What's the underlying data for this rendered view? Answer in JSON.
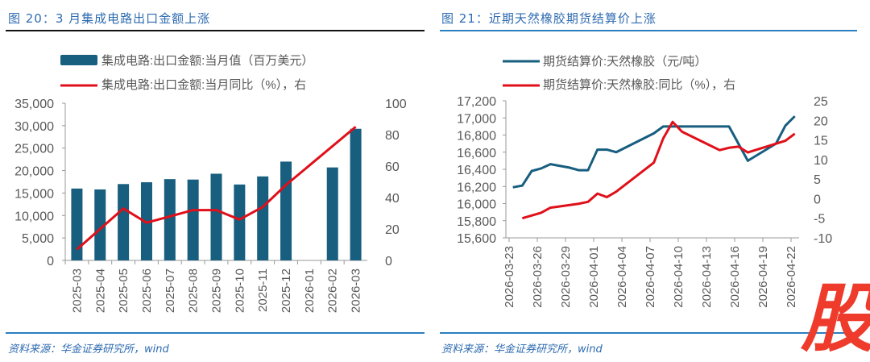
{
  "left": {
    "title": "图 20：3 月集成电路出口金额上涨",
    "source": "资料来源：华金证券研究所，wind"
  },
  "right": {
    "title": "图 21：近期天然橡胶期货结算价上涨",
    "source": "资料来源：华金证券研究所，wind"
  },
  "watermark": "股",
  "colors": {
    "bar": "#175e7f",
    "red": "#e0101a",
    "blue_line": "#175e7f",
    "title": "#2e6bb0"
  },
  "chart_data": [
    {
      "type": "bar",
      "categories": [
        "2025-03",
        "2025-04",
        "2025-05",
        "2025-06",
        "2025-07",
        "2025-08",
        "2025-09",
        "2025-10",
        "2025-11",
        "2025-12",
        "2026-01",
        "2026-02",
        "2026-03"
      ],
      "series": [
        {
          "name": "集成电路:出口金额:当月值（百万美元）",
          "type": "bar",
          "axis": "left",
          "values": [
            16000,
            15800,
            17000,
            17400,
            18100,
            18000,
            19300,
            16900,
            18700,
            22000,
            null,
            20700,
            29300
          ]
        },
        {
          "name": "集成电路:出口金额:当月同比（%），右",
          "type": "line",
          "axis": "right",
          "values": [
            7,
            20,
            33,
            24,
            28,
            32,
            32,
            26,
            34,
            48,
            null,
            null,
            85
          ]
        }
      ],
      "left_axis": {
        "range": [
          0,
          35000
        ],
        "ticks": [
          "0",
          "5,000",
          "10,000",
          "15,000",
          "20,000",
          "25,000",
          "30,000",
          "35,000"
        ]
      },
      "right_axis": {
        "range": [
          0,
          100
        ],
        "ticks": [
          "0",
          "20",
          "40",
          "60",
          "80",
          "100"
        ]
      },
      "legend": "top"
    },
    {
      "type": "line",
      "x_ticks": [
        "2026-03-23",
        "2026-03-26",
        "2026-03-29",
        "2026-04-01",
        "2026-04-04",
        "2026-04-07",
        "2026-04-10",
        "2026-04-13",
        "2026-04-16",
        "2026-04-19",
        "2026-04-22"
      ],
      "series": [
        {
          "name": "期货结算价:天然橡胶（元/吨）",
          "axis": "left",
          "points": [
            [
              "2026-03-23",
              16190
            ],
            [
              "2026-03-24",
              16210
            ],
            [
              "2026-03-25",
              16380
            ],
            [
              "2026-03-26",
              16410
            ],
            [
              "2026-03-27",
              16460
            ],
            [
              "2026-03-29",
              16420
            ],
            [
              "2026-03-30",
              16390
            ],
            [
              "2026-03-31",
              16390
            ],
            [
              "2026-04-01",
              16630
            ],
            [
              "2026-04-02",
              16630
            ],
            [
              "2026-04-03",
              16600
            ],
            [
              "2026-04-07",
              16820
            ],
            [
              "2026-04-08",
              16900
            ],
            [
              "2026-04-15",
              16900
            ],
            [
              "2026-04-17",
              16500
            ],
            [
              "2026-04-20",
              16700
            ],
            [
              "2026-04-21",
              16910
            ],
            [
              "2026-04-22",
              17020
            ]
          ]
        },
        {
          "name": "期货结算价:天然橡胶:同比（%），右",
          "axis": "right",
          "points": [
            [
              "2026-03-24",
              -5
            ],
            [
              "2026-03-26",
              -3.6
            ],
            [
              "2026-03-27",
              -2.3
            ],
            [
              "2026-03-30",
              -1.3
            ],
            [
              "2026-03-31",
              -0.8
            ],
            [
              "2026-04-01",
              1.3
            ],
            [
              "2026-04-02",
              0.4
            ],
            [
              "2026-04-03",
              1.8
            ],
            [
              "2026-04-07",
              9.2
            ],
            [
              "2026-04-08",
              15.4
            ],
            [
              "2026-04-09",
              19.6
            ],
            [
              "2026-04-10",
              17.1
            ],
            [
              "2026-04-14",
              12.4
            ],
            [
              "2026-04-15",
              13
            ],
            [
              "2026-04-16",
              13.3
            ],
            [
              "2026-04-17",
              11.8
            ],
            [
              "2026-04-21",
              14.8
            ],
            [
              "2026-04-22",
              16.6
            ]
          ]
        }
      ],
      "left_axis": {
        "range": [
          15600,
          17200
        ],
        "ticks": [
          "15,600",
          "15,800",
          "16,000",
          "16,200",
          "16,400",
          "16,600",
          "16,800",
          "17,000",
          "17,200"
        ]
      },
      "right_axis": {
        "range": [
          -10,
          25
        ],
        "ticks": [
          "-10",
          "-5",
          "0",
          "5",
          "10",
          "15",
          "20",
          "25"
        ]
      },
      "legend": "top"
    }
  ]
}
